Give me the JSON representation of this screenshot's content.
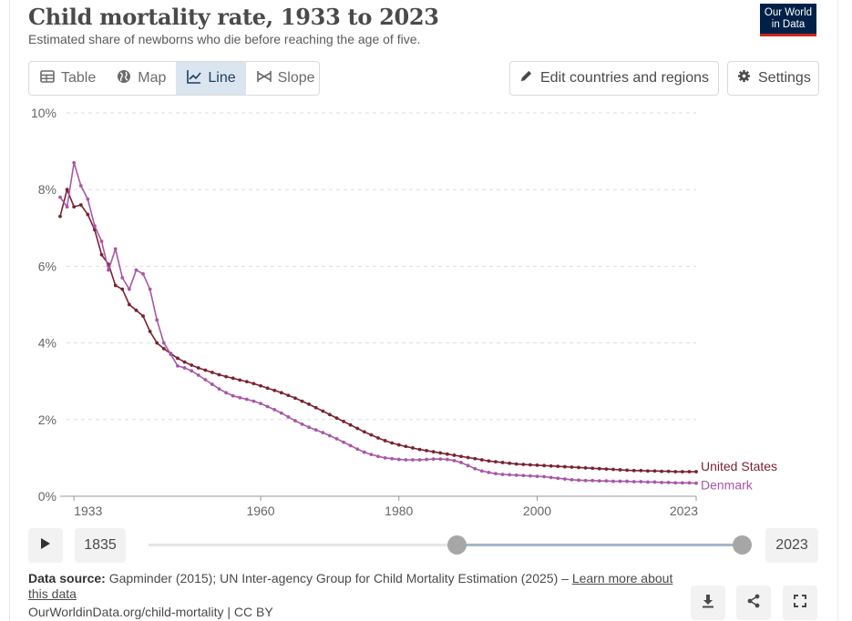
{
  "header": {
    "title": "Child mortality rate, 1933 to 2023",
    "subtitle": "Estimated share of newborns who die before reaching the age of five.",
    "logo_line1": "Our World",
    "logo_line2": "in Data"
  },
  "tabs": [
    {
      "label": "Table",
      "icon": "table-icon"
    },
    {
      "label": "Map",
      "icon": "globe-icon"
    },
    {
      "label": "Line",
      "icon": "line-chart-icon",
      "active": true
    },
    {
      "label": "Slope",
      "icon": "slope-icon"
    }
  ],
  "toolbar": {
    "edit_label": "Edit countries and regions",
    "settings_label": "Settings"
  },
  "timeline": {
    "start_year": "1835",
    "end_year": "2023",
    "selected_start_fraction": 0.52,
    "selected_end_fraction": 1.0
  },
  "footer": {
    "source_label": "Data source:",
    "source_text": " Gapminder (2015); UN Inter-agency Group for Child Mortality Estimation (2025) – ",
    "learn_more": "Learn more about this data",
    "url": "OurWorldinData.org/child-mortality | CC BY"
  },
  "colors": {
    "united_states": "#7a2231",
    "denmark": "#a757a8",
    "grid": "#dddddd",
    "accent_tab": "#dbe5f0"
  },
  "chart_data": {
    "type": "line",
    "ylim": [
      0,
      10
    ],
    "xlim": [
      1931,
      2023
    ],
    "y_ticks": [
      "0%",
      "2%",
      "4%",
      "6%",
      "8%",
      "10%"
    ],
    "x_ticks": [
      "1933",
      "1960",
      "1980",
      "2000",
      "2023"
    ],
    "series": [
      {
        "name": "United States",
        "color": "#7a2231",
        "x": [
          1931,
          1932,
          1933,
          1934,
          1935,
          1936,
          1937,
          1938,
          1939,
          1940,
          1941,
          1942,
          1943,
          1944,
          1945,
          1946,
          1947,
          1948,
          1949,
          1950,
          1951,
          1952,
          1953,
          1954,
          1955,
          1956,
          1957,
          1958,
          1959,
          1960,
          1961,
          1962,
          1963,
          1964,
          1965,
          1966,
          1967,
          1968,
          1969,
          1970,
          1971,
          1972,
          1973,
          1974,
          1975,
          1976,
          1977,
          1978,
          1979,
          1980,
          1981,
          1982,
          1983,
          1984,
          1985,
          1986,
          1987,
          1988,
          1989,
          1990,
          1991,
          1992,
          1993,
          1994,
          1995,
          1996,
          1997,
          1998,
          1999,
          2000,
          2001,
          2002,
          2003,
          2004,
          2005,
          2006,
          2007,
          2008,
          2009,
          2010,
          2011,
          2012,
          2013,
          2014,
          2015,
          2016,
          2017,
          2018,
          2019,
          2020,
          2021,
          2022,
          2023
        ],
        "values": [
          7.3,
          8.0,
          7.55,
          7.6,
          7.35,
          6.95,
          6.3,
          6.05,
          5.5,
          5.4,
          5.0,
          4.85,
          4.7,
          4.3,
          4.0,
          3.85,
          3.72,
          3.6,
          3.5,
          3.42,
          3.35,
          3.29,
          3.23,
          3.17,
          3.12,
          3.08,
          3.03,
          2.99,
          2.94,
          2.88,
          2.82,
          2.76,
          2.7,
          2.63,
          2.56,
          2.48,
          2.4,
          2.31,
          2.22,
          2.13,
          2.04,
          1.95,
          1.86,
          1.77,
          1.68,
          1.6,
          1.52,
          1.45,
          1.39,
          1.34,
          1.3,
          1.26,
          1.22,
          1.19,
          1.16,
          1.13,
          1.1,
          1.07,
          1.04,
          1.01,
          0.98,
          0.95,
          0.92,
          0.9,
          0.88,
          0.86,
          0.84,
          0.83,
          0.82,
          0.81,
          0.8,
          0.79,
          0.78,
          0.77,
          0.76,
          0.75,
          0.74,
          0.73,
          0.72,
          0.71,
          0.7,
          0.69,
          0.68,
          0.67,
          0.67,
          0.66,
          0.66,
          0.65,
          0.65,
          0.64,
          0.64,
          0.64,
          0.64
        ]
      },
      {
        "name": "Denmark",
        "color": "#a757a8",
        "x": [
          1931,
          1932,
          1933,
          1934,
          1935,
          1936,
          1937,
          1938,
          1939,
          1940,
          1941,
          1942,
          1943,
          1944,
          1945,
          1946,
          1947,
          1948,
          1949,
          1950,
          1951,
          1952,
          1953,
          1954,
          1955,
          1956,
          1957,
          1958,
          1959,
          1960,
          1961,
          1962,
          1963,
          1964,
          1965,
          1966,
          1967,
          1968,
          1969,
          1970,
          1971,
          1972,
          1973,
          1974,
          1975,
          1976,
          1977,
          1978,
          1979,
          1980,
          1981,
          1982,
          1983,
          1984,
          1985,
          1986,
          1987,
          1988,
          1989,
          1990,
          1991,
          1992,
          1993,
          1994,
          1995,
          1996,
          1997,
          1998,
          1999,
          2000,
          2001,
          2002,
          2003,
          2004,
          2005,
          2006,
          2007,
          2008,
          2009,
          2010,
          2011,
          2012,
          2013,
          2014,
          2015,
          2016,
          2017,
          2018,
          2019,
          2020,
          2021,
          2022,
          2023
        ],
        "values": [
          7.8,
          7.55,
          8.7,
          8.1,
          7.75,
          7.05,
          6.65,
          5.9,
          6.45,
          5.7,
          5.4,
          5.9,
          5.8,
          5.4,
          4.6,
          4.0,
          3.7,
          3.4,
          3.35,
          3.27,
          3.16,
          3.04,
          2.92,
          2.8,
          2.7,
          2.62,
          2.57,
          2.53,
          2.48,
          2.42,
          2.34,
          2.26,
          2.17,
          2.07,
          1.97,
          1.88,
          1.8,
          1.73,
          1.66,
          1.58,
          1.5,
          1.41,
          1.32,
          1.23,
          1.15,
          1.09,
          1.04,
          1.0,
          0.98,
          0.96,
          0.95,
          0.95,
          0.95,
          0.96,
          0.97,
          0.97,
          0.96,
          0.93,
          0.88,
          0.8,
          0.72,
          0.66,
          0.62,
          0.59,
          0.57,
          0.56,
          0.55,
          0.54,
          0.53,
          0.52,
          0.51,
          0.49,
          0.47,
          0.45,
          0.43,
          0.42,
          0.41,
          0.41,
          0.4,
          0.4,
          0.39,
          0.39,
          0.39,
          0.38,
          0.38,
          0.37,
          0.37,
          0.36,
          0.36,
          0.35,
          0.35,
          0.35,
          0.34
        ]
      }
    ]
  }
}
